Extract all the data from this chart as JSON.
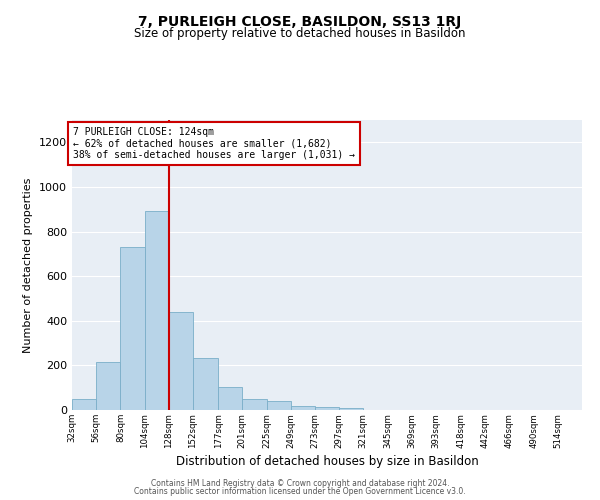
{
  "title": "7, PURLEIGH CLOSE, BASILDON, SS13 1RJ",
  "subtitle": "Size of property relative to detached houses in Basildon",
  "xlabel": "Distribution of detached houses by size in Basildon",
  "ylabel": "Number of detached properties",
  "bar_color": "#b8d4e8",
  "bar_edge_color": "#7aaec8",
  "figure_bg": "#ffffff",
  "axes_bg": "#e8eef5",
  "grid_color": "#ffffff",
  "bin_labels": [
    "32sqm",
    "56sqm",
    "80sqm",
    "104sqm",
    "128sqm",
    "152sqm",
    "177sqm",
    "201sqm",
    "225sqm",
    "249sqm",
    "273sqm",
    "297sqm",
    "321sqm",
    "345sqm",
    "369sqm",
    "393sqm",
    "418sqm",
    "442sqm",
    "466sqm",
    "490sqm",
    "514sqm"
  ],
  "bin_left_edges": [
    32,
    56,
    80,
    104,
    128,
    152,
    177,
    201,
    225,
    249,
    273,
    297,
    321,
    345,
    369,
    393,
    418,
    442,
    466,
    490,
    514
  ],
  "bar_heights": [
    50,
    215,
    730,
    890,
    440,
    235,
    105,
    50,
    40,
    20,
    15,
    10,
    0,
    0,
    0,
    0,
    0,
    0,
    0,
    0,
    0
  ],
  "vline_x": 128,
  "vline_color": "#cc0000",
  "annotation_title": "7 PURLEIGH CLOSE: 124sqm",
  "annotation_line2": "← 62% of detached houses are smaller (1,682)",
  "annotation_line3": "38% of semi-detached houses are larger (1,031) →",
  "annotation_box_facecolor": "#ffffff",
  "annotation_box_edgecolor": "#cc0000",
  "ylim": [
    0,
    1300
  ],
  "yticks": [
    0,
    200,
    400,
    600,
    800,
    1000,
    1200
  ],
  "footer_line1": "Contains HM Land Registry data © Crown copyright and database right 2024.",
  "footer_line2": "Contains public sector information licensed under the Open Government Licence v3.0."
}
